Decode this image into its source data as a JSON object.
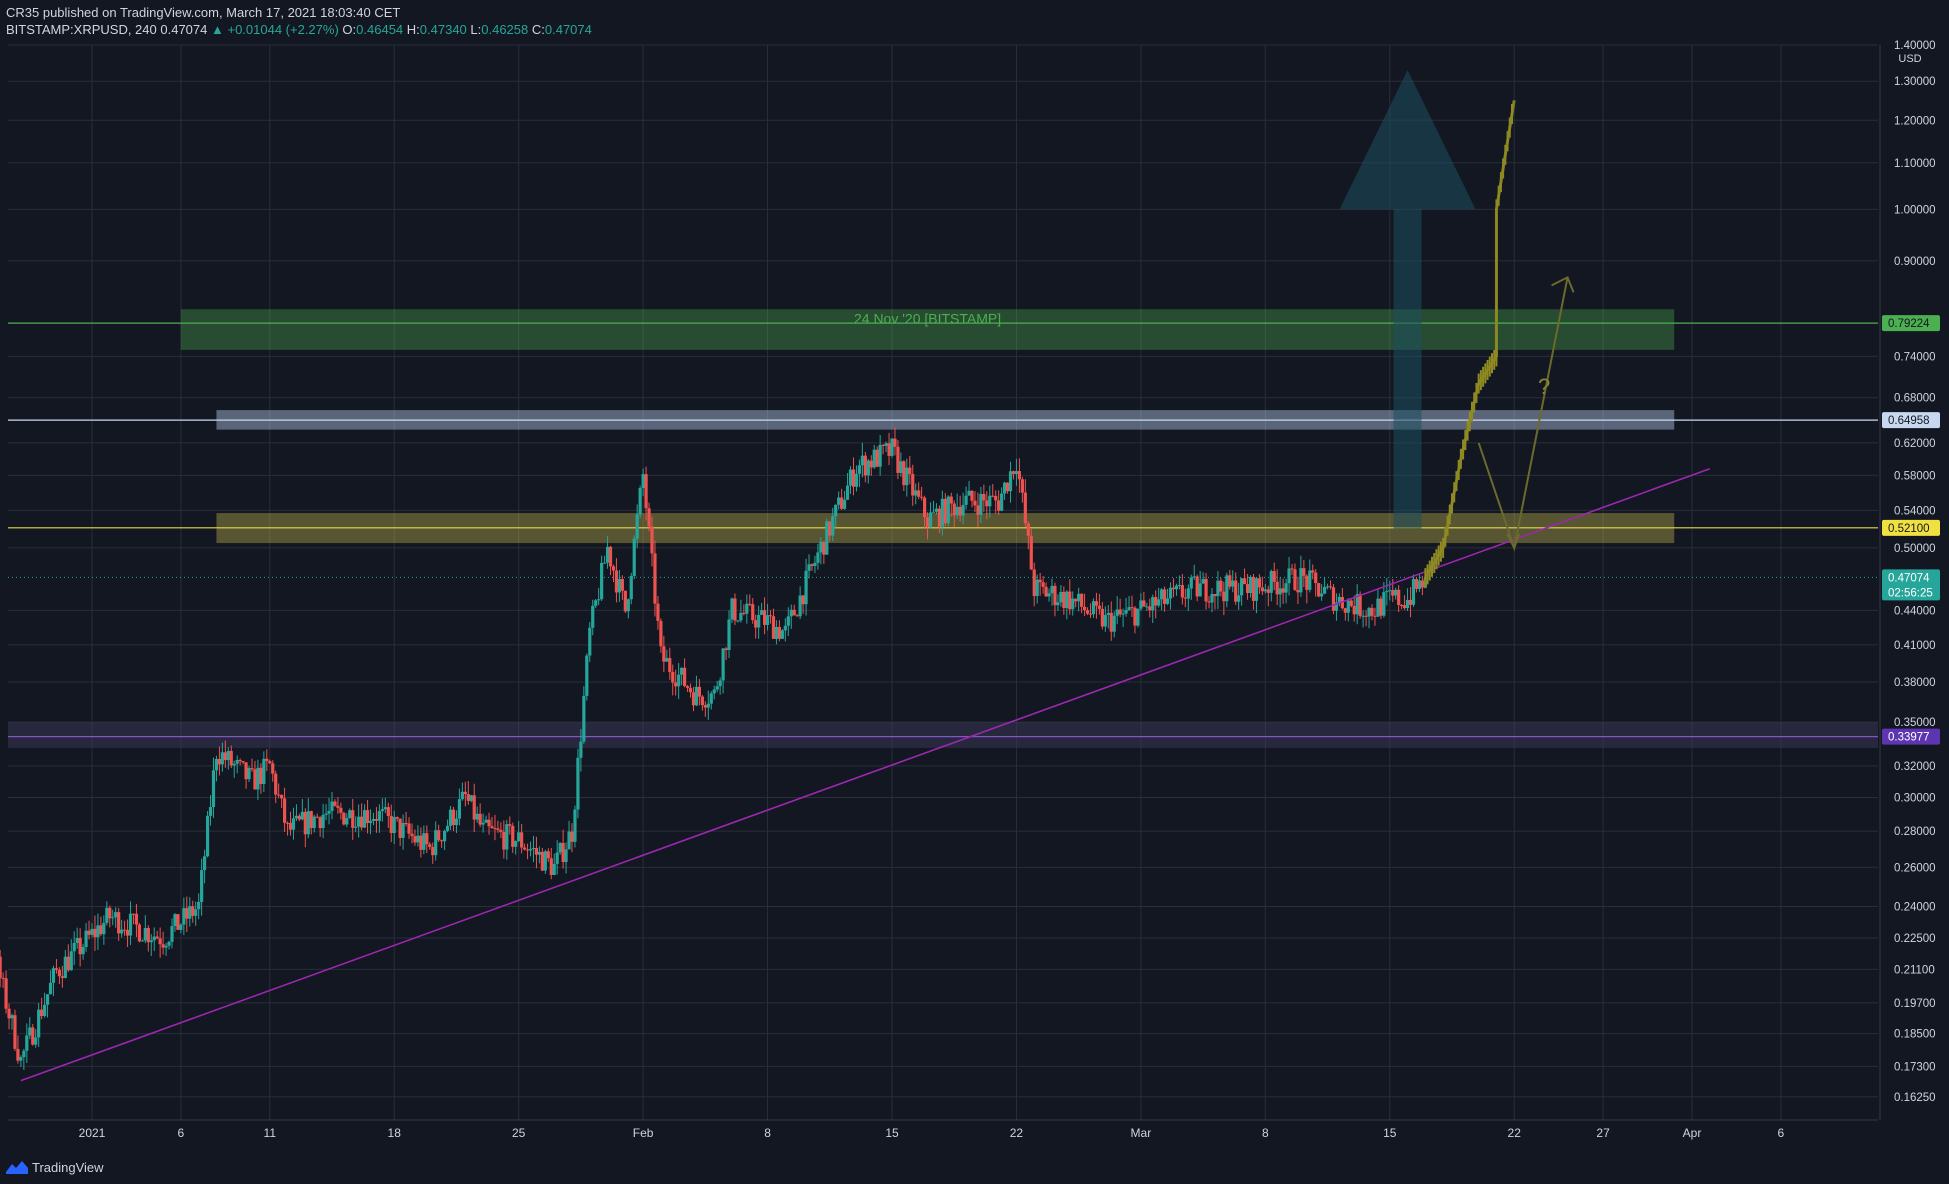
{
  "header": {
    "published": "CR35 published on TradingView.com, March 17, 2021 18:03:40 CET",
    "symbol": "BITSTAMP:XRPUSD, 240",
    "last": "0.47074",
    "change": "▲ +0.01044 (+2.27%)",
    "o_label": "O:",
    "o": "0.46454",
    "h_label": "H:",
    "h": "0.47340",
    "l_label": "L:",
    "l": "0.46258",
    "c_label": "C:",
    "c": "0.47074"
  },
  "footer": {
    "brand": "TradingView"
  },
  "colors": {
    "background": "#131722",
    "up": "#26a69a",
    "down": "#ef5350",
    "grid": "#2a2e39",
    "green_zone": "#4caf50",
    "blue_zone": "#b2c6e6",
    "yellow_zone": "#d8c850",
    "purple": "#9c27b0",
    "projection": "#8f8a22",
    "big_arrow": "#1e4e5e"
  },
  "chart_data": {
    "type": "candlestick",
    "symbol": "BITSTAMP:XRPUSD",
    "timeframe": "240",
    "yscale": "log",
    "ylim": [
      0.155,
      1.4
    ],
    "currency_label": "USD",
    "y_ticks": [
      "1.40000",
      "1.30000",
      "1.20000",
      "1.10000",
      "1.00000",
      "0.90000",
      "0.74000",
      "0.68000",
      "0.62000",
      "0.58000",
      "0.54000",
      "0.50000",
      "0.44000",
      "0.41000",
      "0.38000",
      "0.35000",
      "0.32000",
      "0.30000",
      "0.28000",
      "0.26000",
      "0.24000",
      "0.22500",
      "0.21100",
      "0.19700",
      "0.18500",
      "0.17300",
      "0.16250"
    ],
    "x_ticks": [
      {
        "date": "2021-01-01",
        "label": "2021"
      },
      {
        "date": "2021-01-06",
        "label": "6"
      },
      {
        "date": "2021-01-11",
        "label": "11"
      },
      {
        "date": "2021-01-18",
        "label": "18"
      },
      {
        "date": "2021-01-25",
        "label": "25"
      },
      {
        "date": "2021-02-01",
        "label": "Feb"
      },
      {
        "date": "2021-02-08",
        "label": "8"
      },
      {
        "date": "2021-02-15",
        "label": "15"
      },
      {
        "date": "2021-02-22",
        "label": "22"
      },
      {
        "date": "2021-03-01",
        "label": "Mar"
      },
      {
        "date": "2021-03-08",
        "label": "8"
      },
      {
        "date": "2021-03-15",
        "label": "15"
      },
      {
        "date": "2021-03-22",
        "label": "22"
      },
      {
        "date": "2021-03-27",
        "label": "27"
      },
      {
        "date": "2021-04-01",
        "label": "Apr"
      },
      {
        "date": "2021-04-06",
        "label": "6"
      }
    ],
    "price_anchors": [
      [
        "2020-12-23",
        0.3
      ],
      [
        "2020-12-25",
        0.27
      ],
      [
        "2020-12-28",
        0.175
      ],
      [
        "2020-12-30",
        0.21
      ],
      [
        "2021-01-02",
        0.235
      ],
      [
        "2021-01-05",
        0.225
      ],
      [
        "2021-01-07",
        0.24
      ],
      [
        "2021-01-08",
        0.33
      ],
      [
        "2021-01-10",
        0.31
      ],
      [
        "2021-01-11",
        0.32
      ],
      [
        "2021-01-12",
        0.28
      ],
      [
        "2021-01-14",
        0.29
      ],
      [
        "2021-01-17",
        0.29
      ],
      [
        "2021-01-20",
        0.27
      ],
      [
        "2021-01-22",
        0.3
      ],
      [
        "2021-01-23",
        0.28
      ],
      [
        "2021-01-25",
        0.275
      ],
      [
        "2021-01-27",
        0.26
      ],
      [
        "2021-01-28",
        0.28
      ],
      [
        "2021-01-29",
        0.42
      ],
      [
        "2021-01-30",
        0.5
      ],
      [
        "2021-01-31",
        0.44
      ],
      [
        "2021-02-01",
        0.58
      ],
      [
        "2021-02-02",
        0.4
      ],
      [
        "2021-02-04",
        0.37
      ],
      [
        "2021-02-05",
        0.37
      ],
      [
        "2021-02-06",
        0.44
      ],
      [
        "2021-02-08",
        0.43
      ],
      [
        "2021-02-09",
        0.42
      ],
      [
        "2021-02-11",
        0.5
      ],
      [
        "2021-02-13",
        0.59
      ],
      [
        "2021-02-15",
        0.61
      ],
      [
        "2021-02-17",
        0.53
      ],
      [
        "2021-02-19",
        0.55
      ],
      [
        "2021-02-21",
        0.55
      ],
      [
        "2021-02-22",
        0.6
      ],
      [
        "2021-02-23",
        0.46
      ],
      [
        "2021-02-25",
        0.45
      ],
      [
        "2021-02-27",
        0.43
      ],
      [
        "2021-03-01",
        0.44
      ],
      [
        "2021-03-04",
        0.46
      ],
      [
        "2021-03-07",
        0.46
      ],
      [
        "2021-03-10",
        0.47
      ],
      [
        "2021-03-12",
        0.45
      ],
      [
        "2021-03-14",
        0.44
      ],
      [
        "2021-03-15",
        0.45
      ],
      [
        "2021-03-16",
        0.45
      ],
      [
        "2021-03-17",
        0.47074
      ]
    ],
    "current_price": {
      "value": 0.47074,
      "label": "0.47074",
      "countdown": "02:56:25"
    },
    "zones": [
      {
        "name": "green",
        "label": "24 Nov '20 [BITSTAMP]",
        "from_date": "2021-01-06",
        "to_date": "2021-03-31",
        "low": 0.75,
        "high": 0.815,
        "line": 0.79224,
        "line_label": "0.79224"
      },
      {
        "name": "blue",
        "from_date": "2021-01-08",
        "to_date": "2021-03-31",
        "low": 0.637,
        "high": 0.663,
        "line": 0.64958,
        "line_label": "0.64958"
      },
      {
        "name": "yellow",
        "from_date": "2021-01-08",
        "to_date": "2021-03-31",
        "low": 0.505,
        "high": 0.537,
        "line": 0.521,
        "line_label": "0.52100"
      },
      {
        "name": "purple",
        "from_date": "2020-12-20",
        "to_date": "2021-04-10",
        "low": 0.332,
        "high": 0.35,
        "line": 0.33977,
        "line_label": "0.33977"
      }
    ],
    "trendline": {
      "from": [
        "2020-12-28",
        0.168
      ],
      "to": [
        "2021-04-02",
        0.588
      ]
    },
    "projection_path": [
      [
        "2021-03-17",
        0.47
      ],
      [
        "2021-03-18",
        0.5
      ],
      [
        "2021-03-19",
        0.6
      ],
      [
        "2021-03-20",
        0.7
      ],
      [
        "2021-03-21",
        0.74
      ],
      [
        "2021-03-21",
        1.0
      ],
      [
        "2021-03-22",
        1.25
      ]
    ],
    "alt_projection": [
      [
        "2021-03-20",
        0.62
      ],
      [
        "2021-03-22",
        0.5
      ],
      [
        "2021-03-25",
        0.87
      ]
    ],
    "question_mark": "?"
  }
}
